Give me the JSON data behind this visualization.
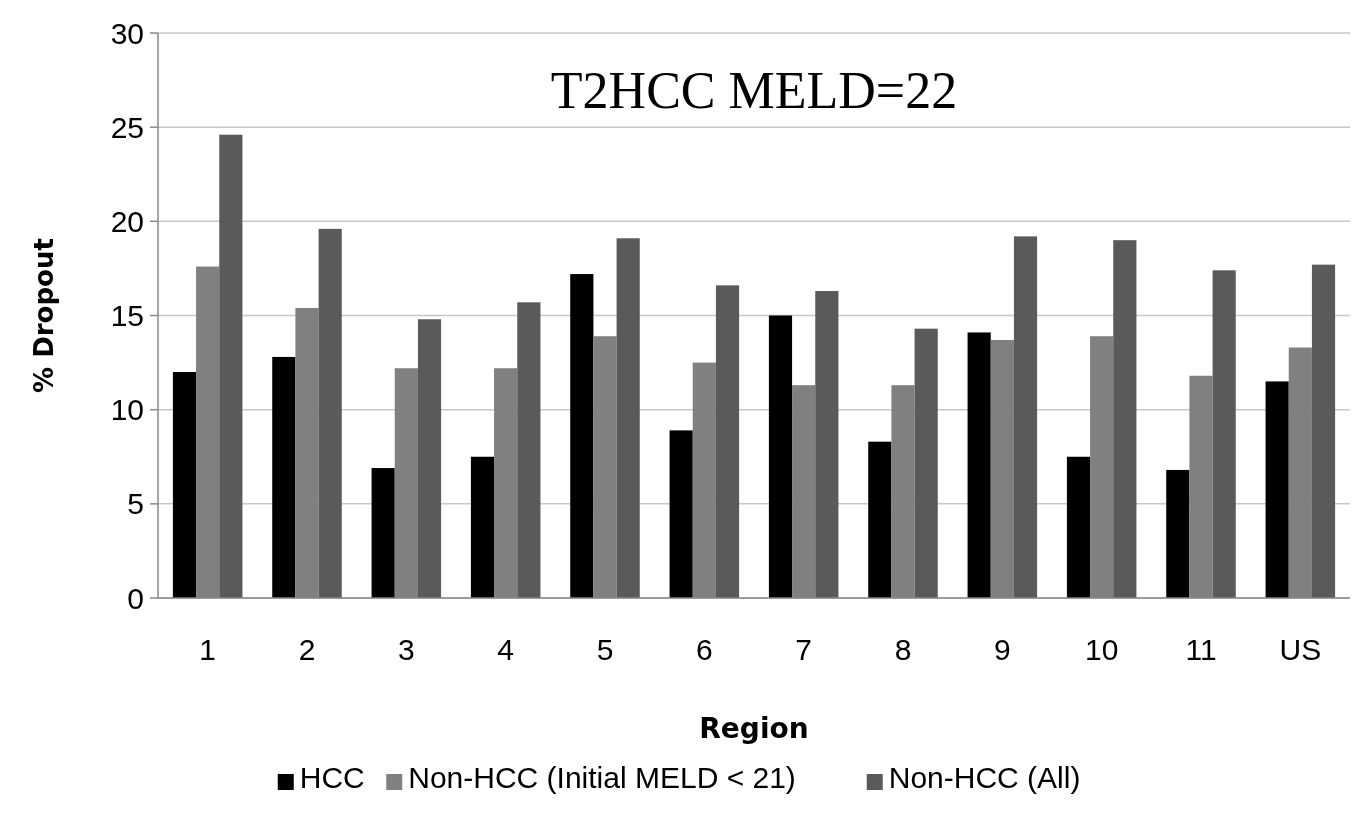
{
  "chart_data": {
    "type": "bar",
    "title": "T2HCC MELD=22",
    "xlabel": "Region",
    "ylabel": "% Dropout",
    "categories": [
      "1",
      "2",
      "3",
      "4",
      "5",
      "6",
      "7",
      "8",
      "9",
      "10",
      "11",
      "US"
    ],
    "series": [
      {
        "name": "HCC",
        "color": "#000000",
        "values": [
          12.0,
          12.8,
          6.9,
          7.5,
          17.2,
          8.9,
          15.0,
          8.3,
          14.1,
          7.5,
          6.8,
          11.5
        ]
      },
      {
        "name": "Non-HCC (Initial MELD < 21)",
        "color": "#808080",
        "values": [
          17.6,
          15.4,
          12.2,
          12.2,
          13.9,
          12.5,
          11.3,
          11.3,
          13.7,
          13.9,
          11.8,
          13.3
        ]
      },
      {
        "name": "Non-HCC (All)",
        "color": "#5a5a5a",
        "values": [
          24.6,
          19.6,
          14.8,
          15.7,
          19.1,
          16.6,
          16.3,
          14.3,
          19.2,
          19.0,
          17.4,
          17.7
        ]
      }
    ],
    "ylim": [
      0,
      30
    ],
    "yticks": [
      0,
      5,
      10,
      15,
      20,
      25,
      30
    ],
    "grid": "y",
    "legend": "bottom"
  }
}
